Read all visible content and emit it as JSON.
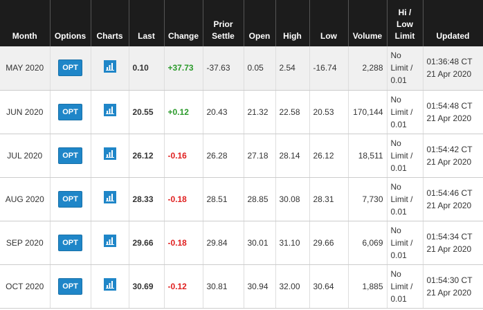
{
  "table": {
    "headers": [
      "Month",
      "Options",
      "Charts",
      "Last",
      "Change",
      "Prior Settle",
      "Open",
      "High",
      "Low",
      "Volume",
      "Hi / Low Limit",
      "Updated"
    ],
    "rows": [
      {
        "month": "MAY 2020",
        "options": "OPT",
        "last": "0.10",
        "change": "+37.73",
        "prior_settle": "-37.63",
        "open": "0.05",
        "high": "2.54",
        "low": "-16.74",
        "volume": "2,288",
        "limit": "No Limit / 0.01",
        "updated": "01:36:48 CT 21 Apr 2020"
      },
      {
        "month": "JUN 2020",
        "options": "OPT",
        "last": "20.55",
        "change": "+0.12",
        "prior_settle": "20.43",
        "open": "21.32",
        "high": "22.58",
        "low": "20.53",
        "volume": "170,144",
        "limit": "No Limit / 0.01",
        "updated": "01:54:48 CT 21 Apr 2020"
      },
      {
        "month": "JUL 2020",
        "options": "OPT",
        "last": "26.12",
        "change": "-0.16",
        "prior_settle": "26.28",
        "open": "27.18",
        "high": "28.14",
        "low": "26.12",
        "volume": "18,511",
        "limit": "No Limit / 0.01",
        "updated": "01:54:42 CT 21 Apr 2020"
      },
      {
        "month": "AUG 2020",
        "options": "OPT",
        "last": "28.33",
        "change": "-0.18",
        "prior_settle": "28.51",
        "open": "28.85",
        "high": "30.08",
        "low": "28.31",
        "volume": "7,730",
        "limit": "No Limit / 0.01",
        "updated": "01:54:46 CT 21 Apr 2020"
      },
      {
        "month": "SEP 2020",
        "options": "OPT",
        "last": "29.66",
        "change": "-0.18",
        "prior_settle": "29.84",
        "open": "30.01",
        "high": "31.10",
        "low": "29.66",
        "volume": "6,069",
        "limit": "No Limit / 0.01",
        "updated": "01:54:34 CT 21 Apr 2020"
      },
      {
        "month": "OCT 2020",
        "options": "OPT",
        "last": "30.69",
        "change": "-0.12",
        "prior_settle": "30.81",
        "open": "30.94",
        "high": "32.00",
        "low": "30.64",
        "volume": "1,885",
        "limit": "No Limit / 0.01",
        "updated": "01:54:30 CT 21 Apr 2020"
      }
    ]
  }
}
